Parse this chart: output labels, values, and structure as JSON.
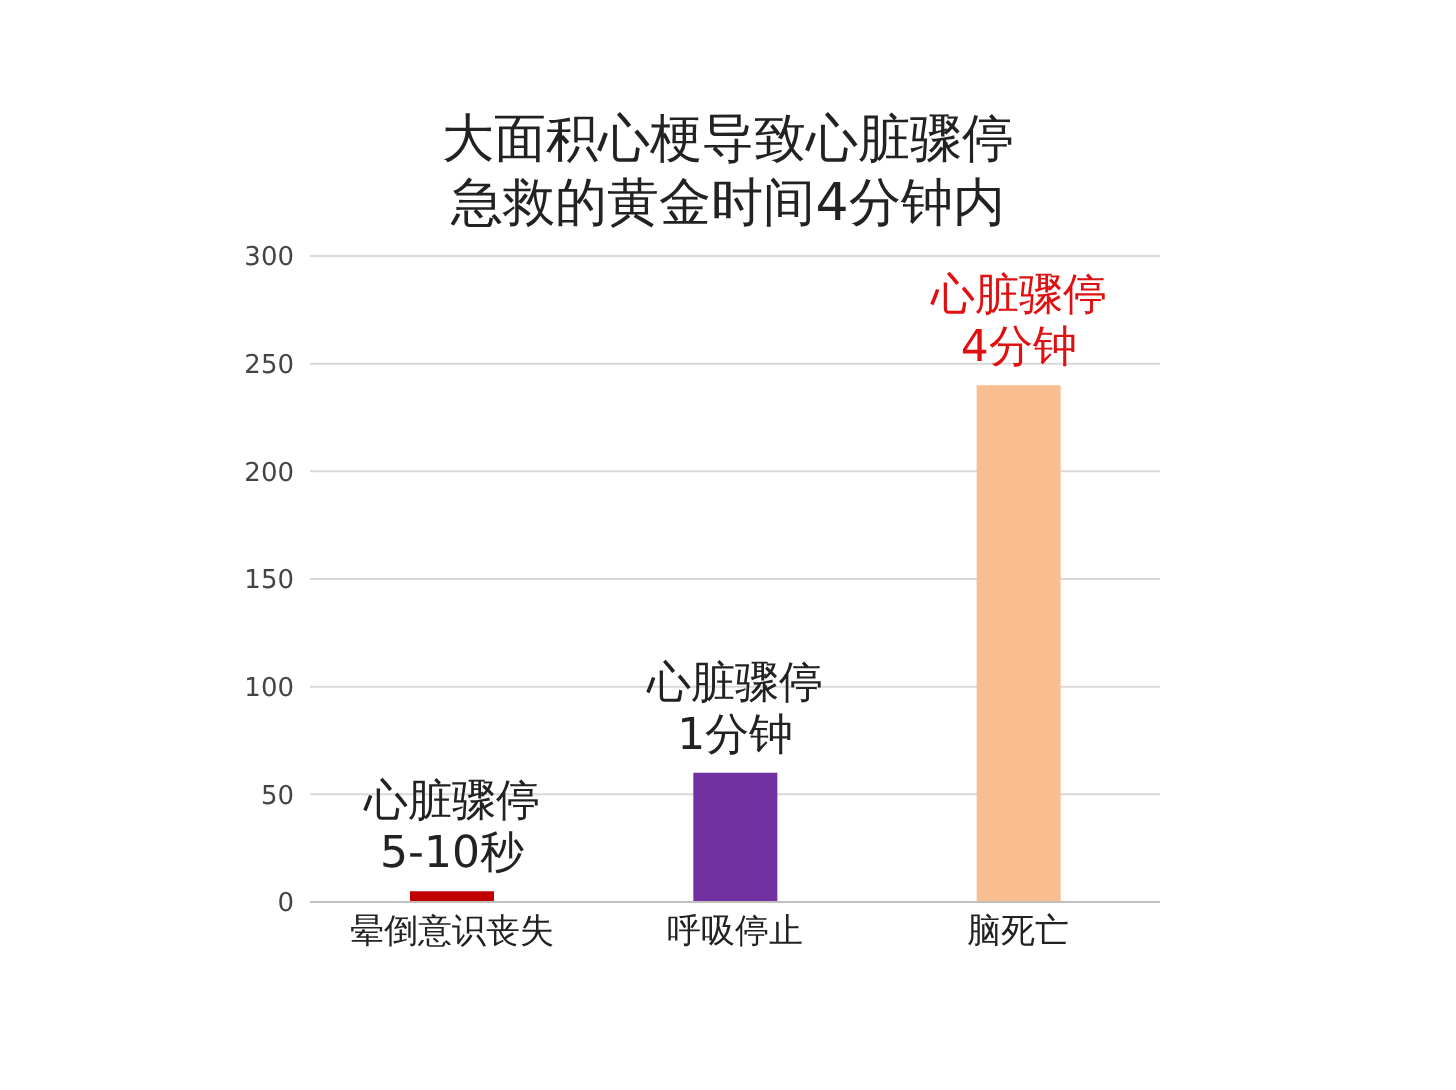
{
  "chart_data": {
    "type": "bar",
    "title": "大面积心梗导致心脏骤停",
    "subtitle": "急救的黄金时间4分钟内",
    "categories": [
      "晕倒意识丧失",
      "呼吸停止",
      "脑死亡"
    ],
    "values": [
      5,
      60,
      240
    ],
    "colors": [
      "#c00000",
      "#7030a0",
      "#f8be8f"
    ],
    "ylim": [
      0,
      300
    ],
    "yticks": [
      0,
      50,
      100,
      150,
      200,
      250,
      300
    ],
    "grid": "y",
    "legend": false,
    "annotations": [
      {
        "text": "心脏骤停\n5-10秒",
        "x": "晕倒意识丧失",
        "y": 5
      },
      {
        "text": "心脏骤停\n1分钟",
        "x": "呼吸停止",
        "y": 60
      },
      {
        "text": "心脏骤停\n4分钟",
        "x": "脑死亡",
        "y": 240
      }
    ]
  }
}
